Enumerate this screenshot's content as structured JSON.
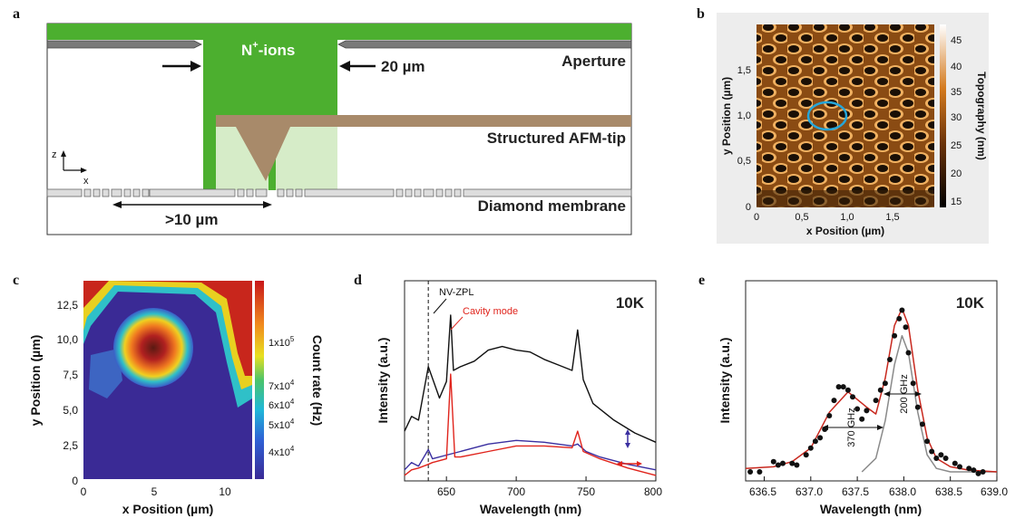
{
  "colors": {
    "green": "#4caf2f",
    "light_green": "#d6ecc8",
    "brown": "#a88a6a",
    "spectrum_black": "#111111",
    "spectrum_red": "#e0241c",
    "spectrum_blue": "#3a2fa0",
    "fit_red": "#c8281e",
    "fit_gray": "#8a8a8a",
    "circle_blue": "#26a6d9"
  },
  "panel_a": {
    "label": "a",
    "ions_prefix": "N",
    "ions_sup": "+",
    "ions_suffix": "-ions",
    "aperture": "Aperture",
    "aperture_width": "20 µm",
    "afm_tip": "Structured AFM-tip",
    "membrane": "Diamond membrane",
    "distance": ">10 µm",
    "axis_z": "z",
    "axis_x": "x"
  },
  "panel_b": {
    "label": "b",
    "xlabel": "x Position (µm)",
    "ylabel": "y Position (µm)",
    "colorbar_label": "Topography (nm)",
    "x_ticks": [
      "0",
      "0,5",
      "1,0",
      "1,5"
    ],
    "y_ticks": [
      "0",
      "0,5",
      "1,0",
      "1,5"
    ],
    "colorbar_ticks": [
      "15",
      "20",
      "25",
      "30",
      "35",
      "40",
      "45"
    ]
  },
  "panel_c": {
    "label": "c",
    "xlabel": "x Position (µm)",
    "ylabel": "y Position (µm)",
    "colorbar_label": "Count rate (Hz)",
    "x_ticks": [
      "0",
      "5",
      "10"
    ],
    "y_ticks": [
      "0",
      "2,5",
      "5,0",
      "7,5",
      "10,0",
      "12,5"
    ],
    "colorbar_ticks": [
      "1x10",
      "7x10",
      "6x10",
      "5x10",
      "4x10"
    ],
    "colorbar_exps": [
      "5",
      "4",
      "4",
      "4",
      "4"
    ]
  },
  "chart_data": [
    {
      "panel": "d",
      "type": "line",
      "xlabel": "Wavelength (nm)",
      "ylabel": "Intensity (a.u.)",
      "xlim": [
        620,
        800
      ],
      "x_ticks": [
        "650",
        "700",
        "750",
        "800"
      ],
      "annotation_temp": "10K",
      "annotation_zpl": "NV-ZPL",
      "annotation_cavity": "Cavity mode",
      "zpl_wavelength": 637,
      "series": [
        {
          "name": "black",
          "x": [
            620,
            625,
            630,
            637,
            645,
            650,
            653,
            655,
            660,
            670,
            680,
            690,
            700,
            710,
            720,
            730,
            740,
            744,
            748,
            755,
            770,
            785,
            800
          ],
          "y": [
            0.27,
            0.35,
            0.33,
            0.62,
            0.45,
            0.54,
            0.9,
            0.6,
            0.62,
            0.65,
            0.71,
            0.73,
            0.71,
            0.7,
            0.66,
            0.63,
            0.6,
            0.82,
            0.55,
            0.42,
            0.33,
            0.26,
            0.21
          ]
        },
        {
          "name": "red",
          "x": [
            620,
            625,
            630,
            637,
            640,
            650,
            653,
            656,
            660,
            680,
            700,
            720,
            740,
            744,
            748,
            760,
            780,
            800
          ],
          "y": [
            0.03,
            0.06,
            0.07,
            0.09,
            0.1,
            0.12,
            0.58,
            0.13,
            0.13,
            0.16,
            0.19,
            0.19,
            0.18,
            0.27,
            0.16,
            0.12,
            0.07,
            0.03
          ]
        },
        {
          "name": "blue",
          "x": [
            620,
            625,
            630,
            637,
            640,
            650,
            660,
            680,
            700,
            720,
            740,
            744,
            750,
            760,
            780,
            800
          ],
          "y": [
            0.06,
            0.1,
            0.08,
            0.17,
            0.12,
            0.14,
            0.16,
            0.2,
            0.22,
            0.21,
            0.19,
            0.2,
            0.16,
            0.13,
            0.09,
            0.06
          ]
        }
      ]
    },
    {
      "panel": "e",
      "type": "scatter",
      "xlabel": "Wavelength (nm)",
      "ylabel": "Intensity (a.u.)",
      "xlim": [
        636.3,
        639.0
      ],
      "x_ticks": [
        "636.5",
        "637.0",
        "637.5",
        "638.0",
        "638.5",
        "639.0"
      ],
      "annotation_temp": "10K",
      "width_broad": "370 GHz",
      "width_narrow": "200 GHz",
      "points_x": [
        636.35,
        636.45,
        636.6,
        636.65,
        636.7,
        636.8,
        636.85,
        636.95,
        637.0,
        637.05,
        637.1,
        637.15,
        637.2,
        637.25,
        637.3,
        637.35,
        637.4,
        637.45,
        637.5,
        637.55,
        637.6,
        637.7,
        637.75,
        637.8,
        637.85,
        637.9,
        637.95,
        637.98,
        638.02,
        638.05,
        638.1,
        638.15,
        638.2,
        638.25,
        638.3,
        638.35,
        638.4,
        638.45,
        638.55,
        638.6,
        638.7,
        638.75,
        638.8,
        638.85
      ],
      "points_y": [
        0.0,
        0.0,
        0.06,
        0.04,
        0.05,
        0.05,
        0.04,
        0.1,
        0.14,
        0.18,
        0.2,
        0.25,
        0.33,
        0.42,
        0.5,
        0.5,
        0.48,
        0.44,
        0.37,
        0.31,
        0.36,
        0.42,
        0.48,
        0.52,
        0.66,
        0.8,
        0.9,
        0.95,
        0.85,
        0.7,
        0.52,
        0.38,
        0.28,
        0.18,
        0.12,
        0.08,
        0.1,
        0.08,
        0.05,
        0.03,
        0.02,
        0.01,
        -0.01,
        0.0
      ],
      "fit_total": {
        "x": [
          636.3,
          636.6,
          636.8,
          637.0,
          637.2,
          637.4,
          637.6,
          637.7,
          637.8,
          637.9,
          637.98,
          638.05,
          638.15,
          638.25,
          638.35,
          638.5,
          638.7,
          639.0
        ],
        "y": [
          0.02,
          0.03,
          0.06,
          0.14,
          0.35,
          0.47,
          0.38,
          0.34,
          0.55,
          0.86,
          0.96,
          0.86,
          0.48,
          0.2,
          0.08,
          0.03,
          0.01,
          0.0
        ]
      },
      "fit_gauss": {
        "x": [
          637.55,
          637.7,
          637.8,
          637.9,
          637.98,
          638.05,
          638.15,
          638.25,
          638.35,
          638.5,
          638.7,
          639.0
        ],
        "y": [
          0.0,
          0.08,
          0.3,
          0.63,
          0.8,
          0.7,
          0.35,
          0.1,
          0.02,
          0.0,
          0.0,
          0.0
        ]
      }
    }
  ]
}
